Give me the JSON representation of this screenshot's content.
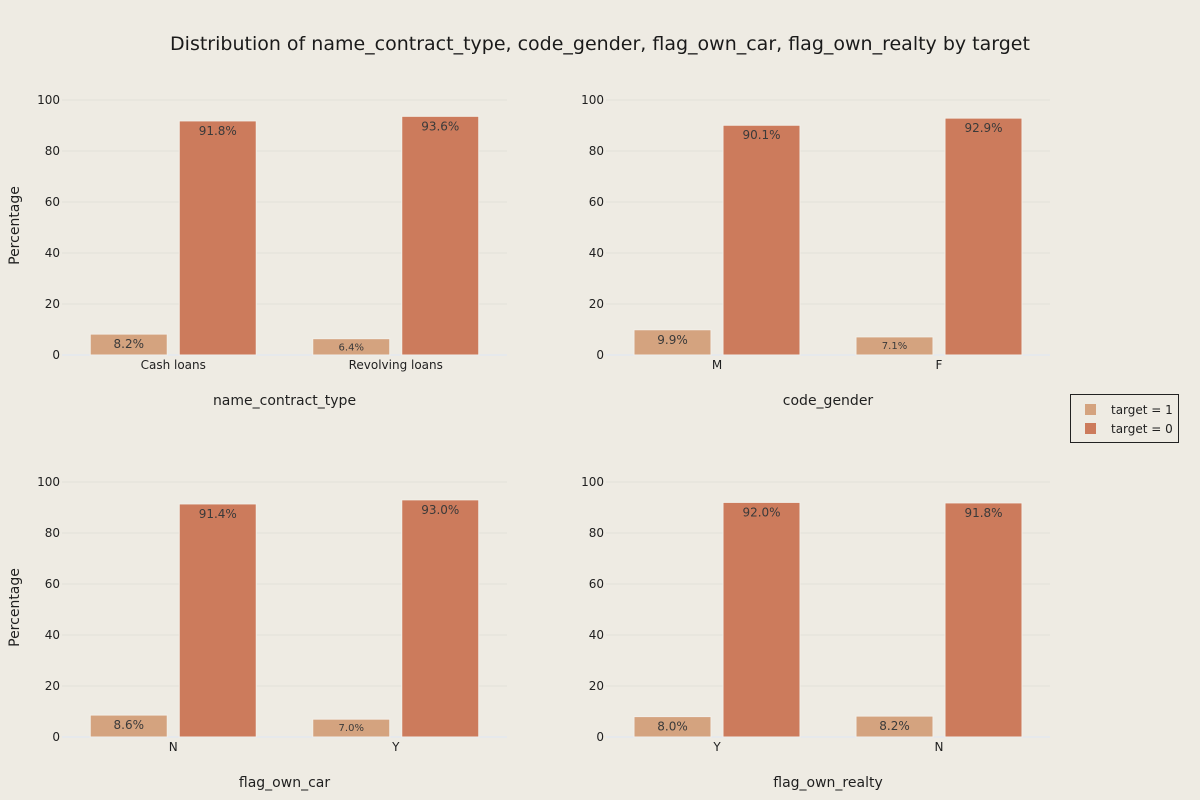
{
  "title": "Distribution of name_contract_type, code_gender, flag_own_car, flag_own_realty by target",
  "colors": {
    "target_1": "#d4a37f",
    "target_0": "#cc7b5c",
    "background": "#eeebe3"
  },
  "legend": {
    "placement": "right-middle",
    "entries": [
      {
        "label": "target = 1",
        "color": "#d4a37f"
      },
      {
        "label": "target = 0",
        "color": "#cc7b5c"
      }
    ]
  },
  "chart_data": [
    {
      "type": "bar",
      "xlabel": "name_contract_type",
      "ylabel": "Percentage",
      "ylim": [
        0,
        100
      ],
      "yticks": [
        0,
        20,
        40,
        60,
        80,
        100
      ],
      "categories": [
        "Cash loans",
        "Revolving loans"
      ],
      "series": [
        {
          "name": "target = 1",
          "values": [
            8.2,
            6.4
          ],
          "labels": [
            "8.2%",
            "6.4%"
          ]
        },
        {
          "name": "target = 0",
          "values": [
            91.8,
            93.6
          ],
          "labels": [
            "91.8%",
            "93.6%"
          ]
        }
      ]
    },
    {
      "type": "bar",
      "xlabel": "code_gender",
      "ylabel": "",
      "ylim": [
        0,
        100
      ],
      "yticks": [
        0,
        20,
        40,
        60,
        80,
        100
      ],
      "categories": [
        "M",
        "F"
      ],
      "series": [
        {
          "name": "target = 1",
          "values": [
            9.9,
            7.1
          ],
          "labels": [
            "9.9%",
            "7.1%"
          ]
        },
        {
          "name": "target = 0",
          "values": [
            90.1,
            92.9
          ],
          "labels": [
            "90.1%",
            "92.9%"
          ]
        }
      ]
    },
    {
      "type": "bar",
      "xlabel": "flag_own_car",
      "ylabel": "Percentage",
      "ylim": [
        0,
        100
      ],
      "yticks": [
        0,
        20,
        40,
        60,
        80,
        100
      ],
      "categories": [
        "N",
        "Y"
      ],
      "series": [
        {
          "name": "target = 1",
          "values": [
            8.6,
            7.0
          ],
          "labels": [
            "8.6%",
            "7.0%"
          ]
        },
        {
          "name": "target = 0",
          "values": [
            91.4,
            93.0
          ],
          "labels": [
            "91.4%",
            "93.0%"
          ]
        }
      ]
    },
    {
      "type": "bar",
      "xlabel": "flag_own_realty",
      "ylabel": "",
      "ylim": [
        0,
        100
      ],
      "yticks": [
        0,
        20,
        40,
        60,
        80,
        100
      ],
      "categories": [
        "Y",
        "N"
      ],
      "series": [
        {
          "name": "target = 1",
          "values": [
            8.0,
            8.2
          ],
          "labels": [
            "8.0%",
            "8.2%"
          ]
        },
        {
          "name": "target = 0",
          "values": [
            92.0,
            91.8
          ],
          "labels": [
            "92.0%",
            "91.8%"
          ]
        }
      ]
    }
  ]
}
